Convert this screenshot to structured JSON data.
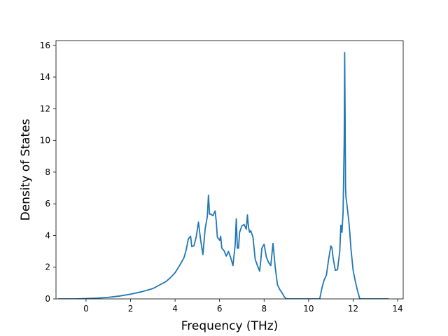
{
  "chart_data": {
    "type": "line",
    "title": "",
    "xlabel": "Frequency (THz)",
    "ylabel": "Density of States",
    "xlim": [
      -1.35,
      14.25
    ],
    "ylim": [
      0,
      16.3
    ],
    "xticks": [
      0,
      2,
      4,
      6,
      8,
      10,
      12,
      14
    ],
    "yticks": [
      0,
      2,
      4,
      6,
      8,
      10,
      12,
      14,
      16
    ],
    "grid": false,
    "legend": "none",
    "colors": {
      "line": "#1f77b4",
      "axes": "#000000",
      "background": "#ffffff"
    },
    "series": [
      {
        "x": [
          -1.25,
          -1.0,
          -0.5,
          0.0,
          0.5,
          1.0,
          1.5,
          2.0,
          2.5,
          3.0,
          3.2,
          3.4,
          3.6,
          3.8,
          4.0,
          4.2,
          4.4,
          4.5,
          4.6,
          4.7,
          4.75,
          4.85,
          4.95,
          5.05,
          5.15,
          5.25,
          5.35,
          5.45,
          5.5,
          5.55,
          5.6,
          5.7,
          5.8,
          5.85,
          5.9,
          6.0,
          6.05,
          6.1,
          6.2,
          6.3,
          6.4,
          6.5,
          6.6,
          6.7,
          6.75,
          6.8,
          6.85,
          6.9,
          7.0,
          7.1,
          7.2,
          7.25,
          7.3,
          7.35,
          7.4,
          7.5,
          7.6,
          7.7,
          7.8,
          7.85,
          7.9,
          8.0,
          8.1,
          8.2,
          8.3,
          8.4,
          8.5,
          8.6,
          8.7,
          8.8,
          8.9,
          9.0,
          9.5,
          10.0,
          10.5,
          10.6,
          10.7,
          10.8,
          10.9,
          11.0,
          11.05,
          11.1,
          11.2,
          11.3,
          11.4,
          11.45,
          11.5,
          11.55,
          11.6,
          11.62,
          11.64,
          11.66,
          11.68,
          11.7,
          11.75,
          11.8,
          11.85,
          11.9,
          11.95,
          12.0,
          12.1,
          12.2,
          12.3,
          12.4,
          12.5,
          13.0,
          13.5,
          13.6
        ],
        "y": [
          0,
          0,
          0,
          0.02,
          0.05,
          0.1,
          0.18,
          0.3,
          0.45,
          0.65,
          0.8,
          0.95,
          1.1,
          1.35,
          1.65,
          2.1,
          2.6,
          3.1,
          3.8,
          3.95,
          3.3,
          3.35,
          3.9,
          4.85,
          3.7,
          2.8,
          4.4,
          5.2,
          6.55,
          5.35,
          5.35,
          5.25,
          5.55,
          4.9,
          3.9,
          3.7,
          3.95,
          3.2,
          3.05,
          2.7,
          3.0,
          2.6,
          2.1,
          3.4,
          5.05,
          3.2,
          3.2,
          4.2,
          4.6,
          4.7,
          4.4,
          5.3,
          4.5,
          4.2,
          4.3,
          3.9,
          2.5,
          2.1,
          1.75,
          2.4,
          3.2,
          3.45,
          2.65,
          2.3,
          2.1,
          3.5,
          2.0,
          0.9,
          0.6,
          0.4,
          0.15,
          0,
          0,
          0,
          0,
          0.7,
          1.2,
          1.5,
          2.5,
          3.35,
          3.2,
          2.6,
          1.8,
          1.85,
          3.0,
          4.65,
          4.2,
          5.5,
          10.0,
          15.55,
          11.5,
          7.0,
          6.4,
          6.2,
          5.6,
          5.0,
          4.2,
          3.2,
          2.5,
          1.8,
          1.1,
          0.5,
          0,
          0,
          0,
          0,
          0,
          0
        ]
      }
    ]
  }
}
